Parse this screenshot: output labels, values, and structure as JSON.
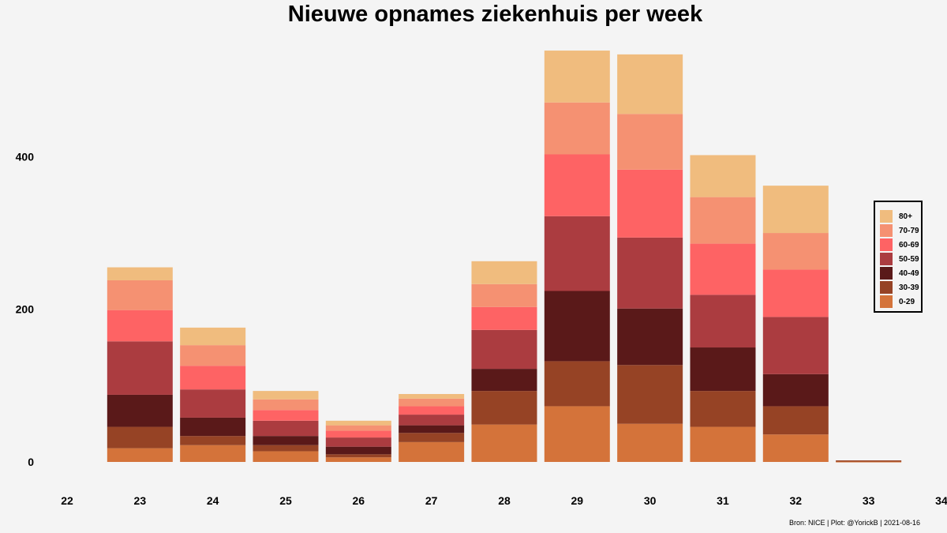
{
  "chart_data": {
    "type": "bar",
    "stacked": true,
    "title": "Nieuwe opnames ziekenhuis per week",
    "xlabel": "",
    "ylabel": "",
    "x_ticks": [
      "22",
      "23",
      "24",
      "25",
      "26",
      "27",
      "28",
      "29",
      "30",
      "31",
      "32",
      "33",
      "34"
    ],
    "y_ticks": [
      "0",
      "200",
      "400"
    ],
    "xlim": [
      22,
      34
    ],
    "ylim": [
      0,
      540
    ],
    "grid": false,
    "legend_position": "right",
    "categories": [
      "23",
      "24",
      "25",
      "26",
      "27",
      "28",
      "29",
      "30",
      "31",
      "32",
      "33"
    ],
    "series": [
      {
        "name": "0-29",
        "color": "#d4733a",
        "values": [
          18,
          22,
          14,
          6,
          26,
          49,
          73,
          50,
          46,
          36,
          1
        ]
      },
      {
        "name": "30-39",
        "color": "#964325",
        "values": [
          28,
          12,
          8,
          4,
          12,
          44,
          59,
          77,
          47,
          37,
          1
        ]
      },
      {
        "name": "40-49",
        "color": "#5a1919",
        "values": [
          42,
          24,
          12,
          10,
          10,
          29,
          92,
          74,
          57,
          42,
          0
        ]
      },
      {
        "name": "50-59",
        "color": "#ab3c40",
        "values": [
          70,
          37,
          20,
          12,
          14,
          51,
          98,
          93,
          69,
          75,
          0
        ]
      },
      {
        "name": "60-69",
        "color": "#fe6364",
        "values": [
          41,
          31,
          14,
          9,
          11,
          30,
          81,
          89,
          67,
          62,
          0
        ]
      },
      {
        "name": "70-79",
        "color": "#f59172",
        "values": [
          39,
          27,
          14,
          7,
          10,
          30,
          68,
          73,
          61,
          48,
          0
        ]
      },
      {
        "name": "80+",
        "color": "#f0bc7e",
        "values": [
          17,
          23,
          11,
          6,
          6,
          30,
          68,
          78,
          55,
          62,
          0
        ]
      }
    ],
    "caption": "Bron: NICE | Plot: @YorickB |  2021-08-16"
  }
}
